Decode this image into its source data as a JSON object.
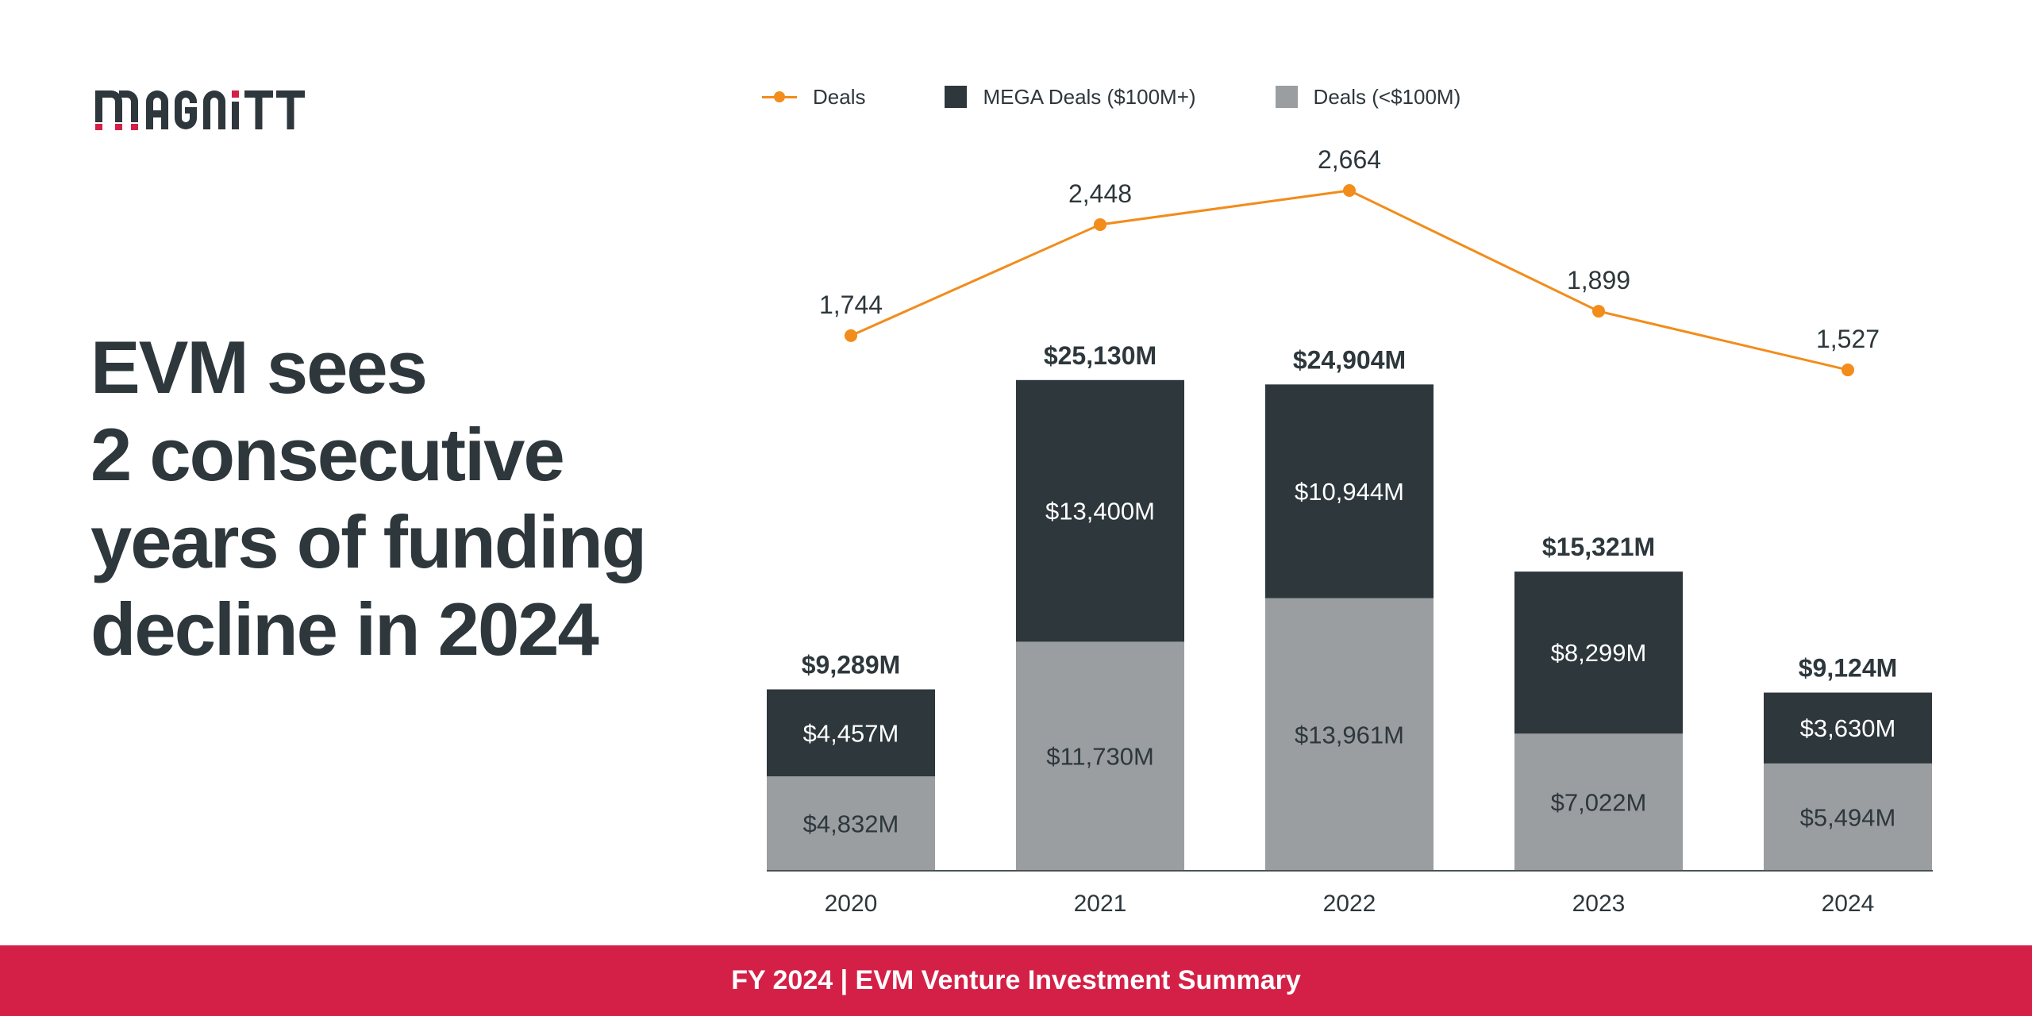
{
  "brand": {
    "logo_text": "MAGNiTT",
    "colors": {
      "accent_red": "#d42047",
      "dark": "#2d373c",
      "grey": "#9a9ea1",
      "orange": "#f28c1b"
    }
  },
  "headline": {
    "lines": [
      "EVM sees",
      "2 consecutive",
      "years of funding",
      "decline in 2024"
    ]
  },
  "legend": {
    "items": [
      {
        "label": "Deals",
        "type": "line",
        "color": "#f28c1b"
      },
      {
        "label": "MEGA Deals ($100M+)",
        "type": "box",
        "color": "#2d373c"
      },
      {
        "label": "Deals (<$100M)",
        "type": "box",
        "color": "#9a9ea1"
      }
    ]
  },
  "footer": {
    "text": "FY 2024 | EVM Venture Investment Summary"
  },
  "chart_data": {
    "type": "bar",
    "stacked": true,
    "title": "",
    "xlabel": "",
    "ylabel": "",
    "categories": [
      "2020",
      "2021",
      "2022",
      "2023",
      "2024"
    ],
    "series": [
      {
        "name": "Deals (<$100M)",
        "kind": "bar",
        "color": "#9a9ea1",
        "label_color": "#2d373c",
        "values": [
          4832,
          11730,
          13961,
          7022,
          5494
        ],
        "labels": [
          "$4,832M",
          "$11,730M",
          "$13,961M",
          "$7,022M",
          "$5,494M"
        ]
      },
      {
        "name": "MEGA Deals ($100M+)",
        "kind": "bar",
        "color": "#2d373c",
        "label_color": "#ffffff",
        "values": [
          4457,
          13400,
          10944,
          8299,
          3630
        ],
        "labels": [
          "$4,457M",
          "$13,400M",
          "$10,944M",
          "$8,299M",
          "$3,630M"
        ]
      },
      {
        "name": "Deals",
        "kind": "line",
        "color": "#f28c1b",
        "values": [
          1744,
          2448,
          2664,
          1899,
          1527
        ],
        "labels": [
          "1,744",
          "2,448",
          "2,664",
          "1,899",
          "1,527"
        ]
      }
    ],
    "totals": {
      "values": [
        9289,
        25130,
        24904,
        15321,
        9124
      ],
      "labels": [
        "$9,289M",
        "$25,130M",
        "$24,904M",
        "$15,321M",
        "$9,124M"
      ]
    },
    "units": {
      "bars": "USD millions",
      "line": "number of deals"
    },
    "ylim_bars": [
      0,
      26000
    ],
    "grid": false,
    "legend_position": "top"
  }
}
